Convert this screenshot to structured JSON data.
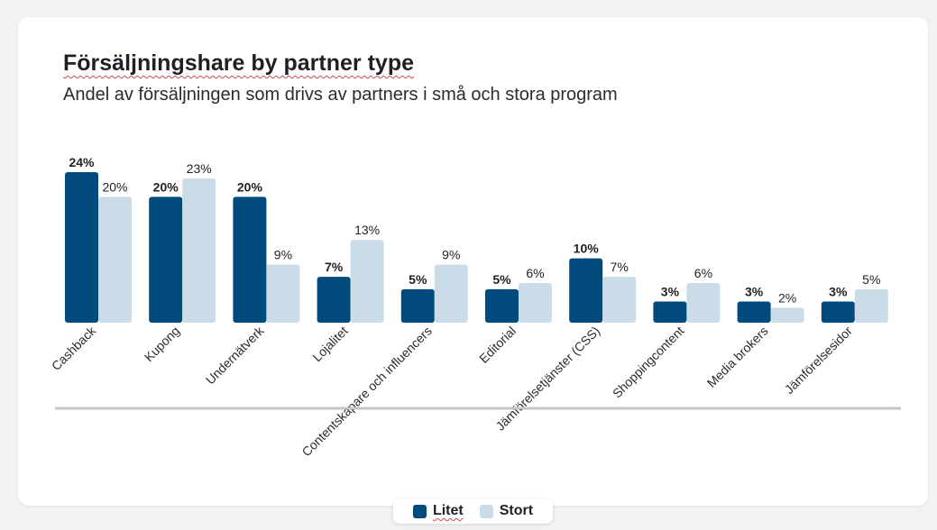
{
  "colors": {
    "litet": "#004a7c",
    "stort": "#c9dce8",
    "axis": "#c7c7c7",
    "text": "#222222"
  },
  "chart_data": {
    "type": "bar",
    "title": "Försäljningshare by partner type",
    "subtitle": "Andel av försäljningen som drivs av partners i små och stora program",
    "xlabel": "",
    "ylabel": "",
    "ylim": [
      0,
      24
    ],
    "grid": false,
    "legend_placement": "bottom-center",
    "categories": [
      "Cashback",
      "Kupong",
      "Undernätverk",
      "Lojalitet",
      "Contentskapare och influencers",
      "Editorial",
      "Jämförelsetjänster (CSS)",
      "Shoppingcontent",
      "Media brokers",
      "Jämförelsesidor"
    ],
    "series": [
      {
        "name": "Litet",
        "values": [
          24,
          20,
          20,
          7,
          5,
          5,
          10,
          3,
          3,
          3
        ],
        "labels": [
          "24%",
          "20%",
          "20%",
          "7%",
          "5%",
          "5%",
          "10%",
          "3%",
          "3%",
          "3%"
        ]
      },
      {
        "name": "Stort",
        "values": [
          20,
          23,
          9,
          13,
          9,
          6,
          7,
          6,
          2,
          5
        ],
        "labels": [
          "20%",
          "23%",
          "9%",
          "13%",
          "9%",
          "6%",
          "7%",
          "6%",
          "2%",
          "5%"
        ]
      }
    ]
  }
}
